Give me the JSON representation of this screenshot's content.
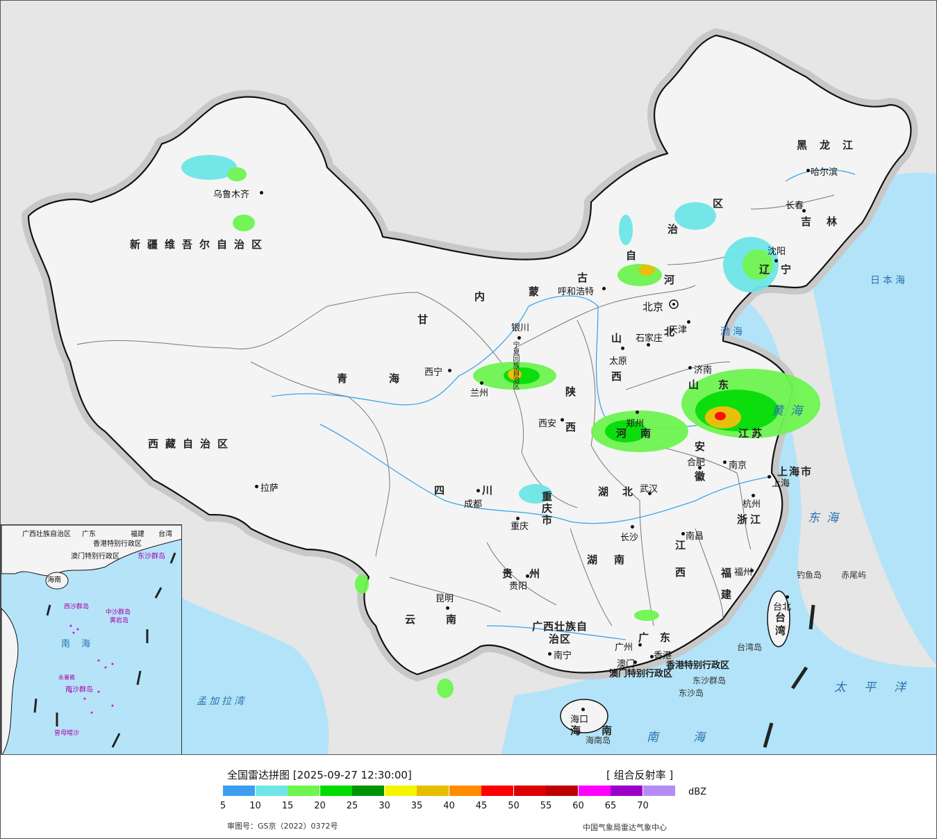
{
  "map": {
    "provinces": [
      {
        "id": "xinjiang",
        "text": "新疆维吾尔自治区"
      },
      {
        "id": "xizang",
        "text": "西藏自治区"
      },
      {
        "id": "qinghai",
        "text": "青海"
      },
      {
        "id": "gansu",
        "text": "甘"
      },
      {
        "id": "nei1",
        "text": "内"
      },
      {
        "id": "nei2",
        "text": "蒙"
      },
      {
        "id": "nei3",
        "text": "古"
      },
      {
        "id": "nei4",
        "text": "自"
      },
      {
        "id": "nei5",
        "text": "治"
      },
      {
        "id": "nei6",
        "text": "区"
      },
      {
        "id": "heilongjiang",
        "text": "黑龙江"
      },
      {
        "id": "jilin",
        "text": "吉林"
      },
      {
        "id": "liaoning",
        "text": "辽宁"
      },
      {
        "id": "hebei",
        "text": "河北"
      },
      {
        "id": "shanxi",
        "text": "山西"
      },
      {
        "id": "shaanxi",
        "text": "陕西"
      },
      {
        "id": "ningxia",
        "text": "宁夏回族自治区"
      },
      {
        "id": "shandong",
        "text": "山东"
      },
      {
        "id": "henan",
        "text": "河南"
      },
      {
        "id": "jiangsu",
        "text": "江苏"
      },
      {
        "id": "anhui",
        "text": "安徽"
      },
      {
        "id": "shanghai",
        "text": "上海市"
      },
      {
        "id": "zhejiang",
        "text": "浙江"
      },
      {
        "id": "hubei",
        "text": "湖北"
      },
      {
        "id": "sichuan",
        "text": "四川"
      },
      {
        "id": "chongqing",
        "text": "重庆市"
      },
      {
        "id": "guizhou",
        "text": "贵州"
      },
      {
        "id": "hunan",
        "text": "湖南"
      },
      {
        "id": "jiangxi",
        "text": "江西"
      },
      {
        "id": "fujian",
        "text": "福建"
      },
      {
        "id": "yunnan",
        "text": "云南"
      },
      {
        "id": "guangxi",
        "text": "广西壮族自治区"
      },
      {
        "id": "guangdong",
        "text": "广东"
      },
      {
        "id": "taiwan",
        "text": "台湾"
      },
      {
        "id": "hainan",
        "text": "海南"
      },
      {
        "id": "hk",
        "text": "香港特别行政区"
      },
      {
        "id": "macau",
        "text": "澳门特别行政区"
      }
    ],
    "cities": [
      {
        "id": "urumqi",
        "text": "乌鲁木齐"
      },
      {
        "id": "lhasa",
        "text": "拉萨"
      },
      {
        "id": "xining",
        "text": "西宁"
      },
      {
        "id": "lanzhou",
        "text": "兰州"
      },
      {
        "id": "yinchuan",
        "text": "银川"
      },
      {
        "id": "hohhot",
        "text": "呼和浩特"
      },
      {
        "id": "beijing",
        "text": "北京"
      },
      {
        "id": "tianjin",
        "text": "天津"
      },
      {
        "id": "shijiazhuang",
        "text": "石家庄"
      },
      {
        "id": "taiyuan",
        "text": "太原"
      },
      {
        "id": "xian",
        "text": "西安"
      },
      {
        "id": "jinan",
        "text": "济南"
      },
      {
        "id": "zhengzhou",
        "text": "郑州"
      },
      {
        "id": "hefei",
        "text": "合肥"
      },
      {
        "id": "nanjing",
        "text": "南京"
      },
      {
        "id": "shanghai_c",
        "text": "上海"
      },
      {
        "id": "hangzhou",
        "text": "杭州"
      },
      {
        "id": "wuhan",
        "text": "武汉"
      },
      {
        "id": "chengdu",
        "text": "成都"
      },
      {
        "id": "chongqing_c",
        "text": "重庆"
      },
      {
        "id": "guiyang",
        "text": "贵阳"
      },
      {
        "id": "changsha",
        "text": "长沙"
      },
      {
        "id": "nanchang",
        "text": "南昌"
      },
      {
        "id": "fuzhou",
        "text": "福州"
      },
      {
        "id": "taipei",
        "text": "台北"
      },
      {
        "id": "kunming",
        "text": "昆明"
      },
      {
        "id": "nanning",
        "text": "南宁"
      },
      {
        "id": "guangzhou",
        "text": "广州"
      },
      {
        "id": "hongkong",
        "text": "香港"
      },
      {
        "id": "macau_c",
        "text": "澳门"
      },
      {
        "id": "haikou",
        "text": "海口"
      },
      {
        "id": "shenyang",
        "text": "沈阳"
      },
      {
        "id": "changchun",
        "text": "长春"
      },
      {
        "id": "harbin",
        "text": "哈尔滨"
      }
    ],
    "seas": [
      {
        "id": "bohai",
        "text": "渤海"
      },
      {
        "id": "huanghai",
        "text": "黄海"
      },
      {
        "id": "donghai",
        "text": "东海"
      },
      {
        "id": "nanhai",
        "text": "南海"
      },
      {
        "id": "taipingyang",
        "text": "太平洋"
      },
      {
        "id": "ribenhai",
        "text": "日本海"
      },
      {
        "id": "mengjiala",
        "text": "孟加拉湾"
      }
    ],
    "islands": [
      {
        "id": "diaoyu",
        "text": "钓鱼岛"
      },
      {
        "id": "chiwei",
        "text": "赤尾屿"
      },
      {
        "id": "taiwandao",
        "text": "台湾岛"
      },
      {
        "id": "dongsha",
        "text": "东沙群岛"
      },
      {
        "id": "dongshadao",
        "text": "东沙岛"
      },
      {
        "id": "hainandao",
        "text": "海南岛"
      }
    ],
    "inset": {
      "labels": [
        {
          "id": "i_guangxi",
          "text": "广西壮族自治区"
        },
        {
          "id": "i_guangdong",
          "text": "广东"
        },
        {
          "id": "i_fujian",
          "text": "福建"
        },
        {
          "id": "i_taiwan",
          "text": "台湾"
        },
        {
          "id": "i_hk",
          "text": "香港特别行政区"
        },
        {
          "id": "i_macau",
          "text": "澳门特别行政区"
        },
        {
          "id": "i_dongsha",
          "text": "东沙群岛"
        },
        {
          "id": "i_hainan",
          "text": "海南"
        },
        {
          "id": "i_xisha",
          "text": "西沙群岛"
        },
        {
          "id": "i_zhongsha",
          "text": "中沙群岛"
        },
        {
          "id": "i_huangyan",
          "text": "黄岩岛"
        },
        {
          "id": "i_nanhai",
          "text": "南海"
        },
        {
          "id": "i_nansha",
          "text": "南沙群岛"
        },
        {
          "id": "i_yongshu",
          "text": "永暑礁"
        },
        {
          "id": "i_zengmu",
          "text": "曾母暗沙"
        }
      ]
    }
  },
  "legend": {
    "title": "全国雷达拼图 [2025-09-27 12:30:00]",
    "product": "[ 组合反射率 ]",
    "unit": "dBZ",
    "colors": [
      "#3d9ef0",
      "#6ee6e8",
      "#6ef550",
      "#00dc00",
      "#009400",
      "#f5f500",
      "#e6be00",
      "#ff8c00",
      "#ff0000",
      "#dc0000",
      "#be0000",
      "#ff00ff",
      "#9a00c8",
      "#b38cf5"
    ],
    "ticks": [
      "5",
      "10",
      "15",
      "20",
      "25",
      "30",
      "35",
      "40",
      "45",
      "50",
      "55",
      "60",
      "65",
      "70"
    ],
    "review_no": "审图号：GS京（2022）0372号",
    "source": "中国气象局雷达气象中心"
  }
}
